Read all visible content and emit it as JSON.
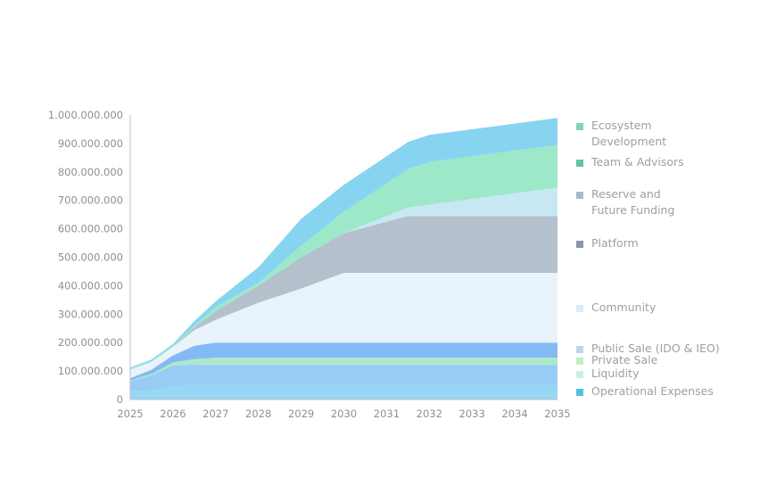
{
  "chart_data": {
    "type": "area",
    "stacked": true,
    "x": [
      2025,
      2025.5,
      2026,
      2026.5,
      2027,
      2028,
      2029,
      2030,
      2031.5,
      2032,
      2035
    ],
    "xticks": [
      "2025",
      "2026",
      "2027",
      "2028",
      "2029",
      "2030",
      "2031",
      "2032",
      "2033",
      "2034",
      "2035"
    ],
    "ylim": [
      0,
      1000000000
    ],
    "yticks": [
      "0",
      "100.000.000",
      "200.000.000",
      "300.000.000",
      "400.000.000",
      "500.000.000",
      "600.000.000",
      "700.000.000",
      "800.000.000",
      "900.000.000",
      "1.000.000.000"
    ],
    "legend_position": "right",
    "grid": false,
    "series": [
      {
        "name": "Operational Expenses",
        "color": "#8fd3f5",
        "values": [
          30000000,
          32000000,
          45000000,
          55000000,
          55000000,
          55000000,
          55000000,
          55000000,
          55000000,
          55000000,
          55000000
        ]
      },
      {
        "name": "Liquidity",
        "color": "#8ec9f3",
        "values": [
          35000000,
          53000000,
          75000000,
          67000000,
          67000000,
          67000000,
          67000000,
          67000000,
          67000000,
          67000000,
          67000000
        ]
      },
      {
        "name": "Private Sale",
        "color": "#a6e6c6",
        "values": [
          2000000,
          5000000,
          10000000,
          20000000,
          25000000,
          25000000,
          25000000,
          25000000,
          25000000,
          25000000,
          25000000
        ]
      },
      {
        "name": "Public Sale (IDO & IEO)",
        "color": "#79b4f2",
        "values": [
          8000000,
          15000000,
          25000000,
          47000000,
          53000000,
          53000000,
          53000000,
          53000000,
          53000000,
          53000000,
          53000000
        ]
      },
      {
        "name": "Community",
        "color": "#e6f2fb",
        "values": [
          30000000,
          27000000,
          30000000,
          55000000,
          80000000,
          140000000,
          190000000,
          245000000,
          245000000,
          245000000,
          245000000
        ]
      },
      {
        "name": "Platform",
        "color": "#aebcc8",
        "values": [
          0,
          0,
          0,
          10000000,
          30000000,
          60000000,
          110000000,
          140000000,
          200000000,
          200000000,
          200000000
        ]
      },
      {
        "name": "Reserve and Future Funding",
        "color": "#c2e6f2",
        "values": [
          0,
          0,
          0,
          0,
          0,
          0,
          0,
          0,
          30000000,
          40000000,
          100000000
        ]
      },
      {
        "name": "Team & Advisors",
        "color": "#94e6c4",
        "values": [
          5000000,
          4000000,
          5000000,
          5000000,
          15000000,
          10000000,
          40000000,
          75000000,
          135000000,
          150000000,
          150000000
        ]
      },
      {
        "name": "Ecosystem Development",
        "color": "#7dd0ef",
        "values": [
          3000000,
          4000000,
          5000000,
          16000000,
          20000000,
          55000000,
          95000000,
          95000000,
          95000000,
          95000000,
          95000000
        ]
      }
    ]
  },
  "legend": [
    {
      "label": "Ecosystem Development",
      "color": "#7fd4c4"
    },
    {
      "label": "Team & Advisors",
      "color": "#62c4a4"
    },
    {
      "label": "Reserve and Future Funding",
      "color": "#a2bccc"
    },
    {
      "label": "Platform",
      "color": "#8c96a8"
    },
    {
      "label": "Community",
      "color": "#dcebf6"
    },
    {
      "label": "Public Sale (IDO & IEO)",
      "color": "#bcd6ee"
    },
    {
      "label": "Private Sale",
      "color": "#c2eec2"
    },
    {
      "label": "Liquidity",
      "color": "#cbeeea"
    },
    {
      "label": "Operational Expenses",
      "color": "#52c1dc"
    }
  ]
}
